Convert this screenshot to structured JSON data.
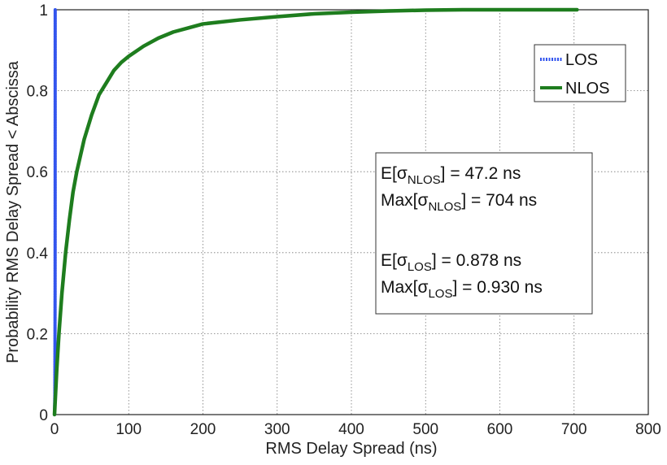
{
  "chart_data": {
    "type": "line",
    "title": "",
    "xlabel": "RMS Delay Spread (ns)",
    "ylabel": "Probability RMS Delay Spread < Abscissa",
    "xlim": [
      0,
      800
    ],
    "ylim": [
      0,
      1
    ],
    "xticks": [
      "0",
      "100",
      "200",
      "300",
      "400",
      "500",
      "600",
      "700",
      "800"
    ],
    "yticks": [
      "0",
      "0.2",
      "0.4",
      "0.6",
      "0.8",
      "1"
    ],
    "grid": true,
    "legend_position": "top-right",
    "series": [
      {
        "name": "LOS",
        "color": "#3355ee",
        "style": "dotted",
        "x": [
          0.0,
          0.5,
          0.8,
          0.878,
          0.93,
          0.93
        ],
        "y": [
          0.0,
          0.05,
          0.3,
          0.5,
          0.98,
          1.0
        ]
      },
      {
        "name": "NLOS",
        "color": "#1e7d1e",
        "style": "solid",
        "x": [
          0,
          3,
          6,
          10,
          15,
          20,
          25,
          30,
          40,
          50,
          60,
          70,
          80,
          90,
          100,
          120,
          140,
          160,
          180,
          200,
          250,
          300,
          350,
          400,
          450,
          500,
          550,
          600,
          650,
          704
        ],
        "y": [
          0.0,
          0.11,
          0.2,
          0.3,
          0.4,
          0.48,
          0.55,
          0.6,
          0.68,
          0.74,
          0.79,
          0.82,
          0.85,
          0.87,
          0.885,
          0.91,
          0.93,
          0.945,
          0.955,
          0.965,
          0.975,
          0.983,
          0.99,
          0.994,
          0.997,
          0.999,
          1.0,
          1.0,
          1.0,
          1.0
        ]
      }
    ],
    "annotation": {
      "nlos_mean_label": "E[σNLOS] = 47.2 ns",
      "nlos_max_label": "Max[σNLOS] = 704 ns",
      "los_mean_label": "E[σLOS] = 0.878 ns",
      "los_max_label": "Max[σLOS] = 0.930 ns",
      "nlos_mean": 47.2,
      "nlos_max": 704,
      "los_mean": 0.878,
      "los_max": 0.93
    }
  }
}
